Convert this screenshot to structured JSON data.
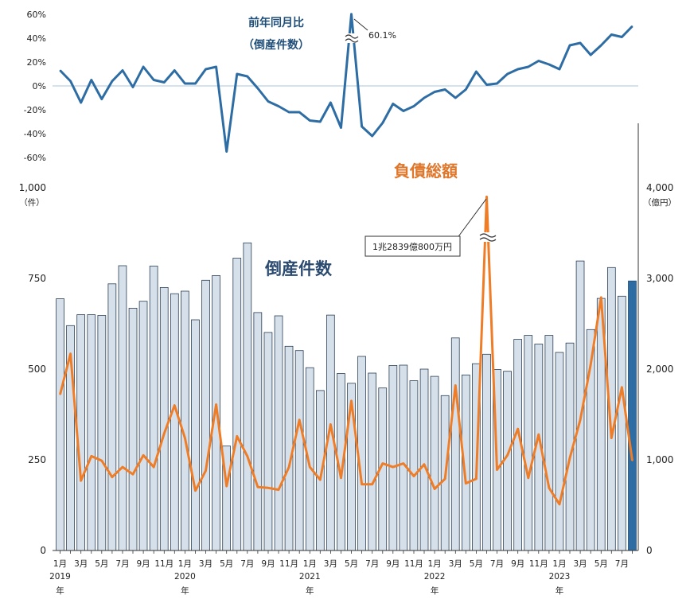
{
  "chart_data": [
    {
      "type": "line",
      "title": "前年同月比\n（倒産件数）",
      "title_line1": "前年同月比",
      "title_line2": "（倒産件数）",
      "ylim": [
        -60,
        60
      ],
      "yticks": [
        "60%",
        "40%",
        "20%",
        "0%",
        "-20%",
        "-40%",
        "-60%"
      ],
      "annotation": "60.1%",
      "color": "#2e6da4",
      "values": [
        13,
        4,
        -14,
        5,
        -11,
        4,
        13,
        -1,
        16,
        5,
        3,
        13,
        2,
        2,
        14,
        16,
        -55,
        10,
        8,
        -2,
        -13,
        -17,
        -22,
        -22,
        -29,
        -30,
        -14,
        -35,
        60.1,
        -34,
        -42,
        -31,
        -15,
        -21,
        -17,
        -10,
        -5,
        -3,
        -10,
        -3,
        12,
        1,
        2,
        10,
        14,
        16,
        21,
        18,
        14,
        34,
        36,
        26,
        34,
        43,
        41,
        50
      ]
    },
    {
      "type": "bar",
      "title": "倒産件数",
      "ylabel": "（件）",
      "ylim": [
        0,
        1000
      ],
      "yticks": [
        "1,000",
        "750",
        "500",
        "250",
        "0"
      ],
      "bar_color": "#d6e0ea",
      "highlight_color": "#2e6da4",
      "values": [
        694,
        620,
        650,
        650,
        648,
        735,
        785,
        668,
        687,
        784,
        725,
        708,
        715,
        636,
        745,
        758,
        288,
        806,
        848,
        656,
        601,
        647,
        563,
        551,
        504,
        441,
        649,
        488,
        461,
        535,
        489,
        448,
        510,
        511,
        468,
        500,
        480,
        427,
        586,
        484,
        515,
        541,
        499,
        494,
        582,
        593,
        569,
        593,
        546,
        572,
        798,
        609,
        695,
        780,
        701,
        743
      ]
    },
    {
      "type": "line",
      "title": "負債総額",
      "ylabel": "（億円）",
      "ylim": [
        0,
        4000
      ],
      "yticks": [
        "4,000",
        "3,000",
        "2,000",
        "1,000",
        "0"
      ],
      "annotation": "1兆2839億800万円",
      "color": "#ef7d27",
      "values": [
        1720,
        2170,
        770,
        1040,
        990,
        810,
        920,
        840,
        1050,
        920,
        1290,
        1600,
        1240,
        660,
        880,
        1610,
        710,
        1260,
        1040,
        700,
        690,
        670,
        920,
        1440,
        920,
        780,
        1390,
        800,
        1650,
        730,
        730,
        960,
        920,
        960,
        820,
        950,
        680,
        790,
        1820,
        740,
        790,
        3900,
        890,
        1050,
        1340,
        800,
        1280,
        690,
        510,
        1020,
        1440,
        2050,
        2790,
        1240,
        1800,
        990
      ]
    }
  ],
  "x_axis": {
    "months": [
      "1月",
      "",
      "3月",
      "",
      "5月",
      "",
      "7月",
      "",
      "9月",
      "",
      "11月",
      "",
      "1月",
      "",
      "3月",
      "",
      "5月",
      "",
      "7月",
      "",
      "9月",
      "",
      "11月",
      "",
      "1月",
      "",
      "3月",
      "",
      "5月",
      "",
      "7月",
      "",
      "9月",
      "",
      "11月",
      "",
      "1月",
      "",
      "3月",
      "",
      "5月",
      "",
      "7月",
      "",
      "9月",
      "",
      "11月",
      "",
      "1月",
      "",
      "3月",
      "",
      "5月",
      "",
      "7月",
      ""
    ],
    "years": [
      {
        "index": 0,
        "label": "2019"
      },
      {
        "index": 12,
        "label": "2020"
      },
      {
        "index": 24,
        "label": "2021"
      },
      {
        "index": 36,
        "label": "2022"
      },
      {
        "index": 48,
        "label": "2023"
      }
    ],
    "year_suffix": "年"
  }
}
